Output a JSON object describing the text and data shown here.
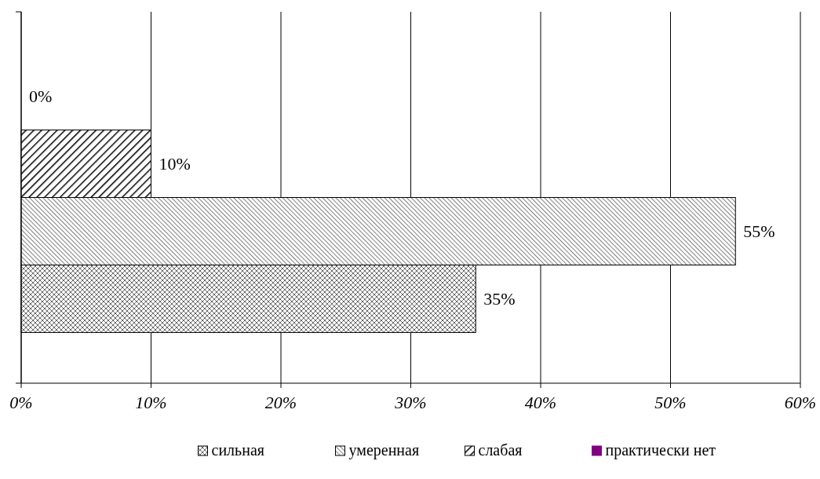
{
  "chart_data": {
    "type": "bar",
    "orientation": "horizontal",
    "categories": [
      null
    ],
    "series": [
      {
        "name": "сильная",
        "color": "#000000",
        "values": [
          35
        ]
      },
      {
        "name": "умеренная",
        "color": "#000000",
        "values": [
          55
        ]
      },
      {
        "name": "слабая",
        "color": "#000000",
        "values": [
          10
        ]
      },
      {
        "name": "практически нет",
        "color": "#800080",
        "values": [
          0
        ]
      }
    ],
    "xlim": [
      0,
      60
    ],
    "xticks": [
      {
        "value": 0,
        "label": "0%"
      },
      {
        "value": 10,
        "label": "10%"
      },
      {
        "value": 20,
        "label": "20%"
      },
      {
        "value": 30,
        "label": "30%"
      },
      {
        "value": 40,
        "label": "40%"
      },
      {
        "value": 50,
        "label": "50%"
      },
      {
        "value": 60,
        "label": "60%"
      }
    ],
    "value_labels": [
      "35%",
      "55%",
      "10%",
      "0%"
    ],
    "grid": "x",
    "legend": "bottom"
  }
}
